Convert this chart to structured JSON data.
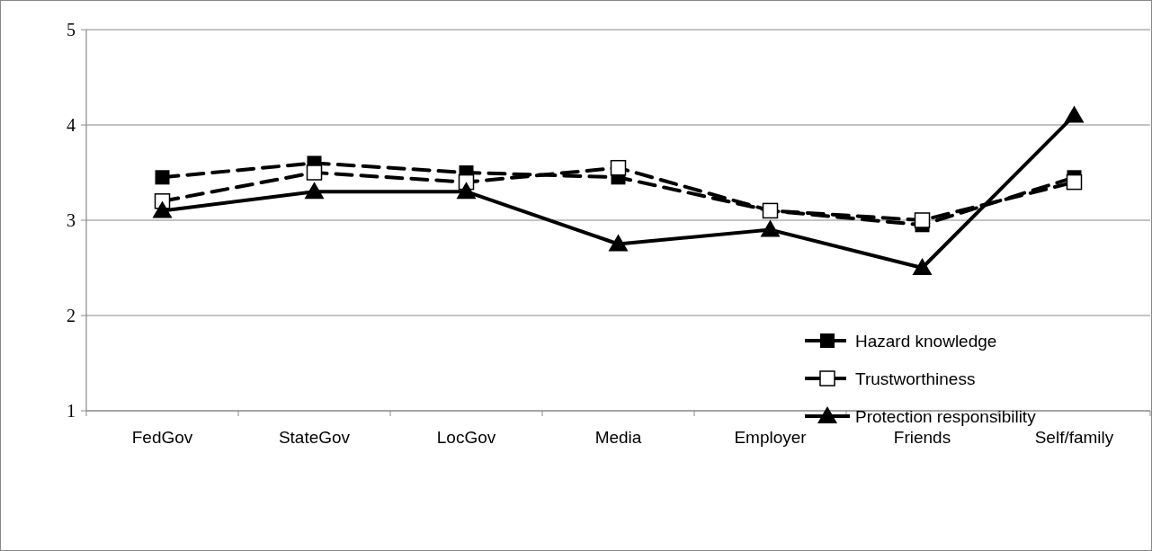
{
  "chart_data": {
    "type": "line",
    "categories": [
      "FedGov",
      "StateGov",
      "LocGov",
      "Media",
      "Employer",
      "Friends",
      "Self/family"
    ],
    "series": [
      {
        "name": "Hazard knowledge",
        "color": "#000000",
        "marker": "square",
        "line_style": "dashed",
        "values": [
          3.45,
          3.6,
          3.5,
          3.45,
          3.1,
          2.95,
          3.45
        ]
      },
      {
        "name": "Trustworthiness",
        "color": "#000000",
        "marker": "square-open",
        "line_style": "dashed",
        "values": [
          3.2,
          3.5,
          3.4,
          3.55,
          3.1,
          3.0,
          3.4
        ]
      },
      {
        "name": "Protection responsibility",
        "color": "#000000",
        "marker": "triangle",
        "line_style": "solid",
        "values": [
          3.1,
          3.3,
          3.3,
          2.75,
          2.9,
          2.5,
          4.1
        ]
      }
    ],
    "ylim": [
      1,
      5
    ],
    "yticks": [
      1,
      2,
      3,
      4,
      5
    ],
    "grid": "y",
    "legend": "bottom right"
  }
}
